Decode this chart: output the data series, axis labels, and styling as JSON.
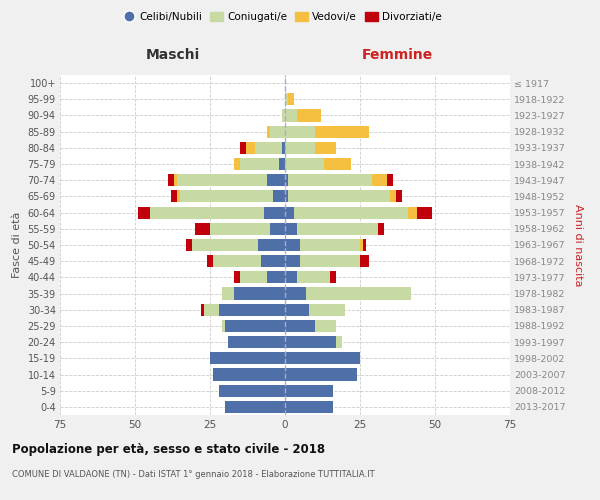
{
  "age_groups": [
    "0-4",
    "5-9",
    "10-14",
    "15-19",
    "20-24",
    "25-29",
    "30-34",
    "35-39",
    "40-44",
    "45-49",
    "50-54",
    "55-59",
    "60-64",
    "65-69",
    "70-74",
    "75-79",
    "80-84",
    "85-89",
    "90-94",
    "95-99",
    "100+"
  ],
  "birth_years": [
    "2013-2017",
    "2008-2012",
    "2003-2007",
    "1998-2002",
    "1993-1997",
    "1988-1992",
    "1983-1987",
    "1978-1982",
    "1973-1977",
    "1968-1972",
    "1963-1967",
    "1958-1962",
    "1953-1957",
    "1948-1952",
    "1943-1947",
    "1938-1942",
    "1933-1937",
    "1928-1932",
    "1923-1927",
    "1918-1922",
    "≤ 1917"
  ],
  "colors": {
    "celibi": "#4e6fa8",
    "coniugati": "#c8daa4",
    "vedovi": "#f5c040",
    "divorziati": "#c0000b"
  },
  "maschi": {
    "celibi": [
      20,
      22,
      24,
      25,
      19,
      20,
      22,
      17,
      6,
      8,
      9,
      5,
      7,
      4,
      6,
      2,
      1,
      0,
      0,
      0,
      0
    ],
    "coniugati": [
      0,
      0,
      0,
      0,
      0,
      1,
      5,
      4,
      9,
      16,
      22,
      20,
      38,
      31,
      30,
      13,
      9,
      5,
      1,
      0,
      0
    ],
    "vedovi": [
      0,
      0,
      0,
      0,
      0,
      0,
      0,
      0,
      0,
      0,
      0,
      0,
      0,
      1,
      1,
      2,
      3,
      1,
      0,
      0,
      0
    ],
    "divorziati": [
      0,
      0,
      0,
      0,
      0,
      0,
      1,
      0,
      2,
      2,
      2,
      5,
      4,
      2,
      2,
      0,
      2,
      0,
      0,
      0,
      0
    ]
  },
  "femmine": {
    "celibi": [
      16,
      16,
      24,
      25,
      17,
      10,
      8,
      7,
      4,
      5,
      5,
      4,
      3,
      1,
      1,
      0,
      0,
      0,
      0,
      0,
      0
    ],
    "coniugati": [
      0,
      0,
      0,
      0,
      2,
      7,
      12,
      35,
      11,
      20,
      20,
      27,
      38,
      34,
      28,
      13,
      10,
      10,
      4,
      1,
      0
    ],
    "vedovi": [
      0,
      0,
      0,
      0,
      0,
      0,
      0,
      0,
      0,
      0,
      1,
      0,
      3,
      2,
      5,
      9,
      7,
      18,
      8,
      2,
      0
    ],
    "divorziati": [
      0,
      0,
      0,
      0,
      0,
      0,
      0,
      0,
      2,
      3,
      1,
      2,
      5,
      2,
      2,
      0,
      0,
      0,
      0,
      0,
      0
    ]
  },
  "xlim": 75,
  "title": "Popolazione per età, sesso e stato civile - 2018",
  "subtitle": "COMUNE DI VALDAONE (TN) - Dati ISTAT 1° gennaio 2018 - Elaborazione TUTTITALIA.IT",
  "xlabel_left": "Maschi",
  "xlabel_right": "Femmine",
  "ylabel": "Fasce di età",
  "ylabel_right": "Anni di nascita",
  "legend_labels": [
    "Celibi/Nubili",
    "Coniugati/e",
    "Vedovi/e",
    "Divorziati/e"
  ],
  "bg_color": "#f0f0f0",
  "plot_bg": "#ffffff"
}
